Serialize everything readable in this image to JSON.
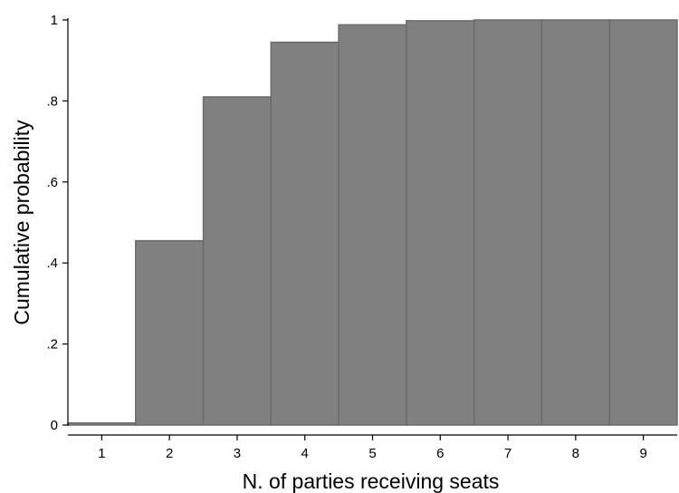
{
  "chart_data": {
    "type": "bar",
    "title": "",
    "xlabel": "N. of parties receiving seats",
    "ylabel": "Cumulative probability",
    "categories": [
      "1",
      "2",
      "3",
      "4",
      "5",
      "6",
      "7",
      "8",
      "9"
    ],
    "x": [
      1,
      2,
      3,
      4,
      5,
      6,
      7,
      8,
      9
    ],
    "values": [
      0.005,
      0.455,
      0.81,
      0.945,
      0.988,
      0.998,
      1.0,
      1.0,
      1.0
    ],
    "xlim": [
      0.5,
      9.5
    ],
    "ylim": [
      0,
      1
    ],
    "yticks": [
      {
        "value": 0,
        "label": "0"
      },
      {
        "value": 0.2,
        "label": ".2"
      },
      {
        "value": 0.4,
        "label": ".4"
      },
      {
        "value": 0.6,
        "label": ".6"
      },
      {
        "value": 0.8,
        "label": ".8"
      },
      {
        "value": 1,
        "label": "1"
      }
    ],
    "grid": false,
    "bar_color": "#808080",
    "bar_edge_color": "#6b6b6b"
  }
}
